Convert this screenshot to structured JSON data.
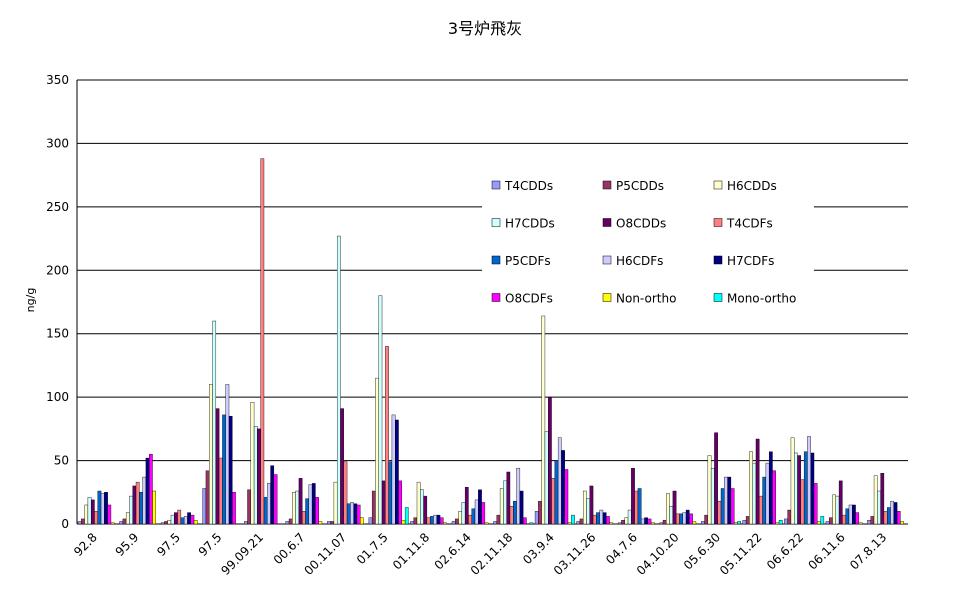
{
  "chart_data": {
    "type": "bar",
    "title": "3号炉飛灰",
    "ylabel": "ng/g",
    "categories": [
      "92.8",
      "95.9",
      "97.5",
      "97.5",
      "99.09.21",
      "00.6.7",
      "00.11.07",
      "01.7.5",
      "01.11.8",
      "02.6.14",
      "02.11.18",
      "03.9.4",
      "03.11.26",
      "04.7.6",
      "04.10.20",
      "05.6.30",
      "05.11.22",
      "06.6.22",
      "06.11.6",
      "07.8.13"
    ],
    "series": [
      {
        "name": "T4CDDs",
        "color": "#9999ff",
        "values": [
          2,
          2,
          1,
          28,
          2,
          2,
          2,
          5,
          2,
          2,
          2,
          10,
          2,
          1,
          1,
          2,
          3,
          4,
          2,
          3
        ]
      },
      {
        "name": "P5CDDs",
        "color": "#993366",
        "values": [
          4,
          4,
          2,
          42,
          27,
          4,
          2,
          26,
          5,
          4,
          7,
          18,
          4,
          3,
          3,
          7,
          6,
          11,
          5,
          6
        ]
      },
      {
        "name": "H6CDDs",
        "color": "#ffffcc",
        "values": [
          15,
          9,
          3,
          110,
          96,
          25,
          33,
          115,
          33,
          10,
          28,
          164,
          26,
          5,
          24,
          54,
          57,
          68,
          23,
          38
        ]
      },
      {
        "name": "H7CDDs",
        "color": "#ccffff",
        "values": [
          21,
          22,
          7,
          160,
          77,
          26,
          227,
          180,
          27,
          17,
          34,
          73,
          20,
          11,
          14,
          44,
          48,
          56,
          22,
          26
        ]
      },
      {
        "name": "O8CDDs",
        "color": "#660066",
        "values": [
          19,
          30,
          9,
          91,
          75,
          36,
          91,
          34,
          22,
          29,
          41,
          100,
          30,
          44,
          26,
          72,
          67,
          54,
          34,
          40
        ]
      },
      {
        "name": "T4CDFs",
        "color": "#ff8080",
        "values": [
          10,
          33,
          11,
          52,
          288,
          10,
          49,
          140,
          5,
          7,
          14,
          36,
          7,
          26,
          8,
          18,
          22,
          35,
          7,
          10
        ]
      },
      {
        "name": "P5CDFs",
        "color": "#0066cc",
        "values": [
          26,
          25,
          5,
          86,
          21,
          20,
          16,
          49,
          6,
          12,
          18,
          50,
          9,
          28,
          8,
          28,
          37,
          57,
          12,
          13
        ]
      },
      {
        "name": "H6CDFs",
        "color": "#ccccff",
        "values": [
          24,
          37,
          6,
          110,
          32,
          31,
          17,
          86,
          7,
          19,
          44,
          68,
          11,
          4,
          9,
          37,
          48,
          69,
          15,
          18
        ]
      },
      {
        "name": "H7CDFs",
        "color": "#000080",
        "values": [
          25,
          52,
          9,
          85,
          46,
          32,
          16,
          82,
          7,
          27,
          26,
          58,
          9,
          5,
          11,
          37,
          57,
          56,
          15,
          17
        ]
      },
      {
        "name": "O8CDFs",
        "color": "#ff00ff",
        "values": [
          15,
          55,
          7,
          25,
          39,
          21,
          15,
          34,
          5,
          17,
          5,
          43,
          6,
          4,
          8,
          28,
          42,
          32,
          9,
          10
        ]
      },
      {
        "name": "Non-ortho",
        "color": "#ffff00",
        "values": [
          1,
          26,
          3,
          0,
          0,
          2,
          5,
          3,
          1,
          1,
          0,
          1,
          1,
          1,
          2,
          1,
          1,
          2,
          1,
          2
        ]
      },
      {
        "name": "Mono-ortho",
        "color": "#00ffff",
        "values": [
          0,
          0,
          0,
          0,
          0,
          0,
          0,
          13,
          0,
          0,
          1,
          7,
          0,
          0,
          0,
          2,
          3,
          6,
          0,
          0
        ]
      }
    ],
    "ylim": [
      0,
      350
    ],
    "yticks": [
      0,
      50,
      100,
      150,
      200,
      250,
      300,
      350
    ],
    "grid": true
  }
}
